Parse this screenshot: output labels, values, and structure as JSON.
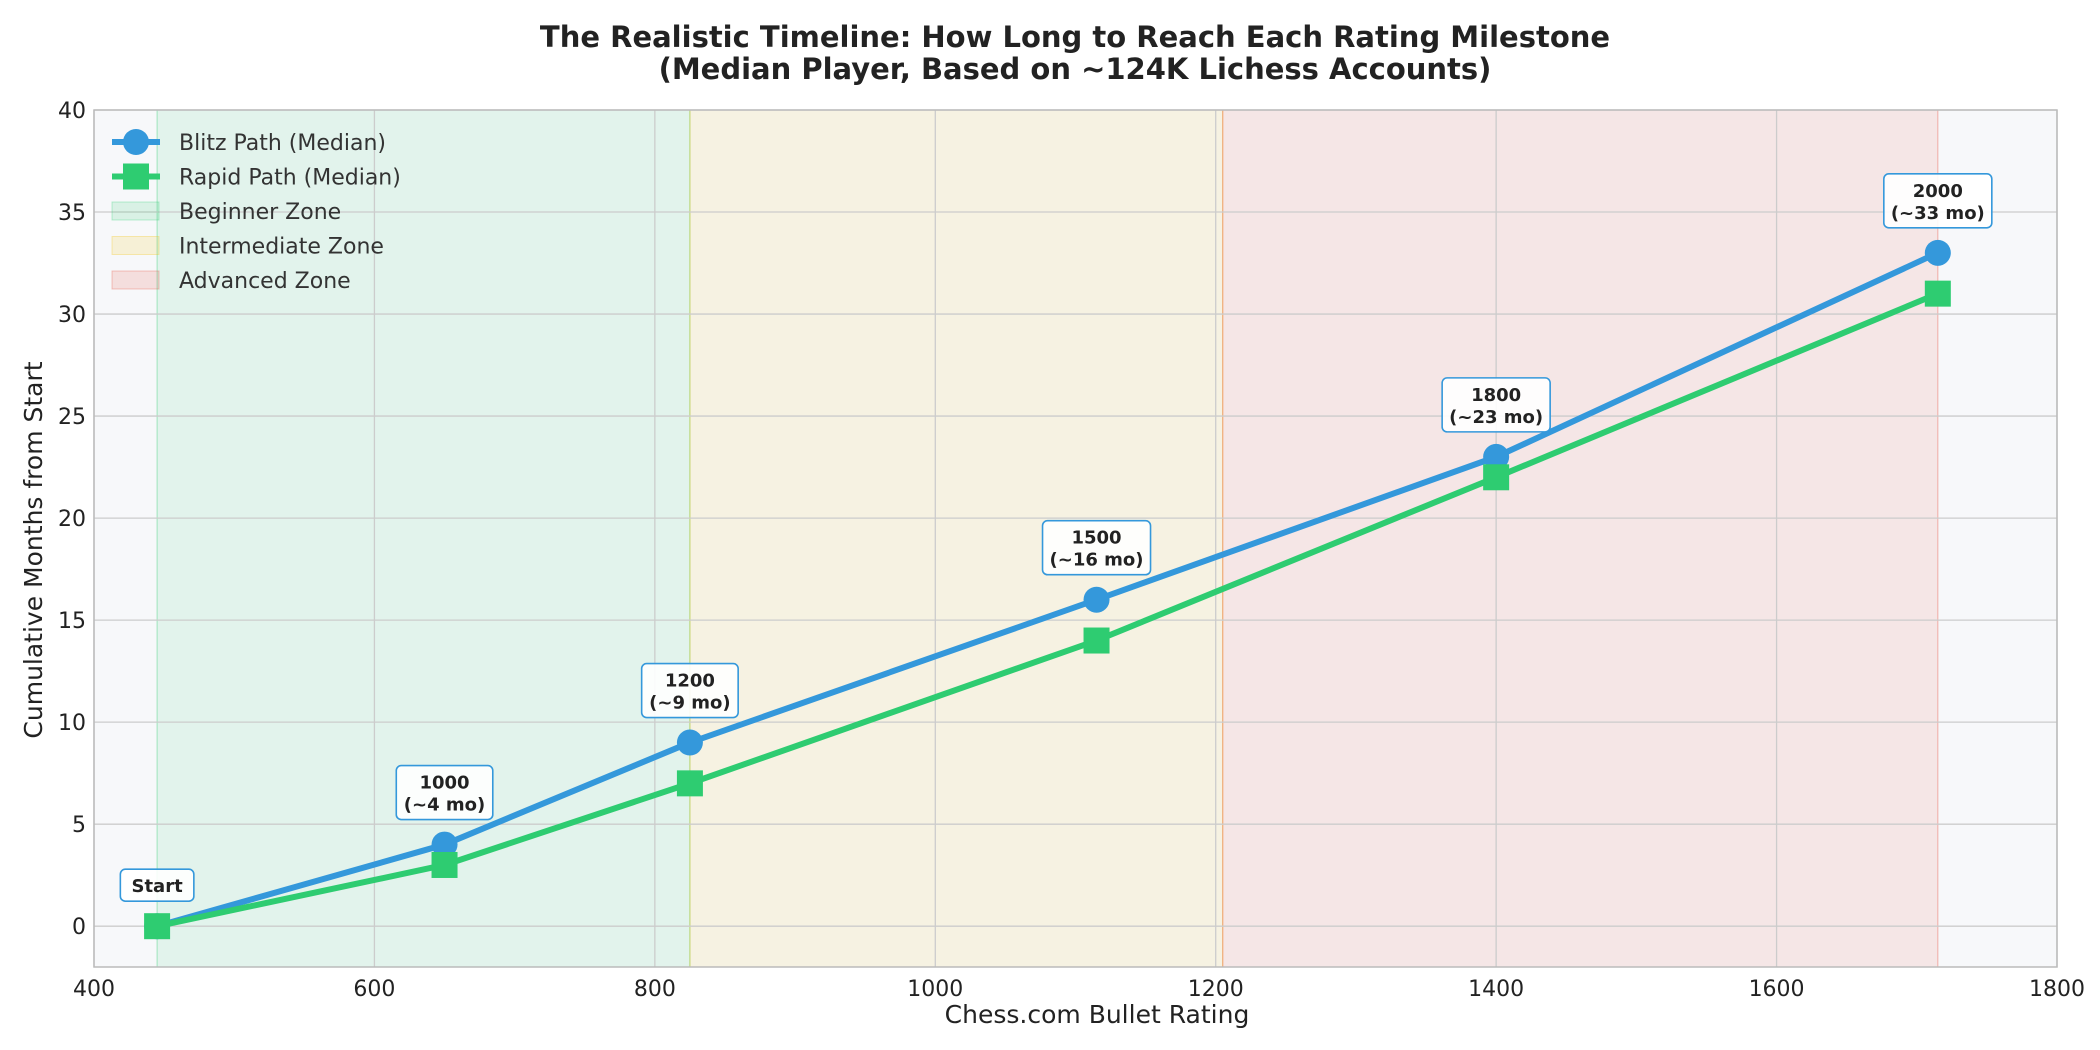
{
  "chart_data": {
    "type": "line",
    "title": "The Realistic Timeline: How Long to Reach Each Rating Milestone",
    "subtitle": "(Median Player, Based on ~124K Lichess Accounts)",
    "xlabel": "Chess.com Bullet Rating",
    "ylabel": "Cumulative Months from Start",
    "xlim": [
      400,
      1800
    ],
    "ylim": [
      -2,
      40
    ],
    "xticks": [
      400,
      600,
      800,
      1000,
      1200,
      1400,
      1600,
      1800
    ],
    "yticks": [
      0,
      5,
      10,
      15,
      20,
      25,
      30,
      35,
      40
    ],
    "grid": true,
    "legend_position": "top-left",
    "zones": [
      {
        "name": "Beginner Zone",
        "x": [
          445,
          825
        ],
        "color": "#2ecc71"
      },
      {
        "name": "Intermediate Zone",
        "x": [
          825,
          1205
        ],
        "color": "#f1c40f"
      },
      {
        "name": "Advanced Zone",
        "x": [
          1205,
          1715
        ],
        "color": "#e74c3c"
      }
    ],
    "series": [
      {
        "name": "Blitz Path (Median)",
        "color": "#3498db",
        "marker": "circle",
        "x": [
          445,
          650,
          825,
          1115,
          1400,
          1715
        ],
        "y": [
          0,
          4,
          9,
          16,
          23,
          33
        ]
      },
      {
        "name": "Rapid Path (Median)",
        "color": "#2ecc71",
        "marker": "square",
        "x": [
          445,
          650,
          825,
          1115,
          1400,
          1715
        ],
        "y": [
          0,
          3,
          7,
          14,
          22,
          31
        ]
      }
    ],
    "annotations": [
      {
        "lines": [
          "Start"
        ],
        "x": 445,
        "y": 0
      },
      {
        "lines": [
          "1000",
          "(~4 mo)"
        ],
        "x": 650,
        "y": 4
      },
      {
        "lines": [
          "1200",
          "(~9 mo)"
        ],
        "x": 825,
        "y": 9
      },
      {
        "lines": [
          "1500",
          "(~16 mo)"
        ],
        "x": 1115,
        "y": 16
      },
      {
        "lines": [
          "1800",
          "(~23 mo)"
        ],
        "x": 1400,
        "y": 23
      },
      {
        "lines": [
          "2000",
          "(~33 mo)"
        ],
        "x": 1715,
        "y": 33
      }
    ],
    "colors": {
      "background": "#f7f8fa",
      "grid": "#cccccc",
      "axis": "#bbbbbb",
      "annotation_border": "#3498db"
    }
  }
}
